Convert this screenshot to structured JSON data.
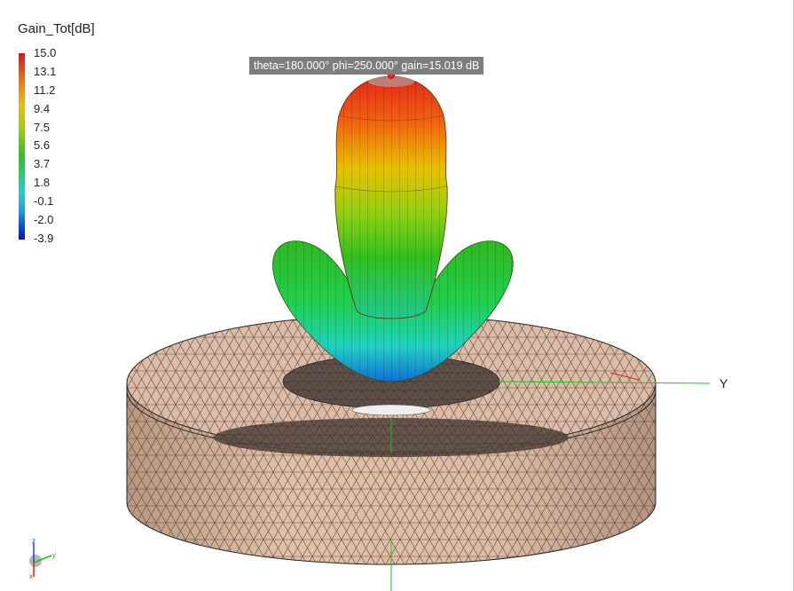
{
  "legend": {
    "title": "Gain_Tot[dB]",
    "ticks": [
      "15.0",
      "13.1",
      "11.2",
      "9.4",
      "7.5",
      "5.6",
      "3.7",
      "1.8",
      "-0.1",
      "-2.0",
      "-3.9"
    ]
  },
  "tooltip": {
    "text": "theta=180.000° phi=250.000° gain=15.019 dB"
  },
  "axes": {
    "y_label": "Y",
    "x_color": "#e02020",
    "y_color": "#20c020",
    "z_color": "#2040e0"
  },
  "colors": {
    "substrate": "#d4b29a",
    "mesh": "#4a3a30",
    "ground": "#5a4a42"
  }
}
